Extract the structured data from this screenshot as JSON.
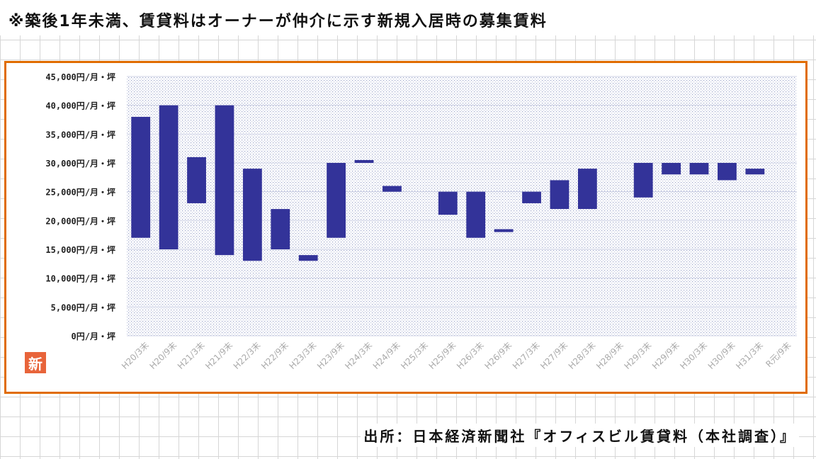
{
  "caption": "※築後1年未満、賃貸料はオーナーが仲介に示す新規入居時の募集賃料",
  "badge": "新",
  "source": "出所：日本経済新聞社『オフィスビル賃貸料（本社調査）』",
  "colors": {
    "bar": "#333399",
    "frame": "#e06c00",
    "badge": "#e8643a"
  },
  "chart_data": {
    "type": "bar",
    "subtype": "floating-range",
    "ylim": [
      0,
      45000
    ],
    "y_ticks": [
      {
        "value": 0,
        "label": "0円/月・坪"
      },
      {
        "value": 5000,
        "label": "5,000円/月・坪"
      },
      {
        "value": 10000,
        "label": "10,000円/月・坪"
      },
      {
        "value": 15000,
        "label": "15,000円/月・坪"
      },
      {
        "value": 20000,
        "label": "20,000円/月・坪"
      },
      {
        "value": 25000,
        "label": "25,000円/月・坪"
      },
      {
        "value": 30000,
        "label": "30,000円/月・坪"
      },
      {
        "value": 35000,
        "label": "35,000円/月・坪"
      },
      {
        "value": 40000,
        "label": "40,000円/月・坪"
      },
      {
        "value": 45000,
        "label": "45,000円/月・坪"
      }
    ],
    "categories": [
      "H20/3末",
      "H20/9末",
      "H21/3末",
      "H21/9末",
      "H22/3末",
      "H22/9末",
      "H23/3末",
      "H23/9末",
      "H24/3末",
      "H24/9末",
      "H25/3末",
      "H25/9末",
      "H26/3末",
      "H26/9末",
      "H27/3末",
      "H27/9末",
      "H28/3末",
      "H28/9末",
      "H29/3末",
      "H29/9末",
      "H30/3末",
      "H30/9末",
      "H31/3末",
      "R元/9末"
    ],
    "ranges": [
      [
        17000,
        38000
      ],
      [
        15000,
        40000
      ],
      [
        23000,
        31000
      ],
      [
        14000,
        40000
      ],
      [
        13000,
        29000
      ],
      [
        15000,
        22000
      ],
      [
        13000,
        14000
      ],
      [
        17000,
        30000
      ],
      [
        30000,
        30500
      ],
      [
        25000,
        26000
      ],
      null,
      [
        21000,
        25000
      ],
      [
        17000,
        25000
      ],
      [
        18000,
        18500
      ],
      [
        23000,
        25000
      ],
      [
        22000,
        27000
      ],
      [
        22000,
        29000
      ],
      null,
      [
        24000,
        30000
      ],
      [
        28000,
        30000
      ],
      [
        28000,
        30000
      ],
      [
        27000,
        30000
      ],
      [
        28000,
        29000
      ],
      null
    ],
    "grid": true,
    "legend": "none"
  }
}
